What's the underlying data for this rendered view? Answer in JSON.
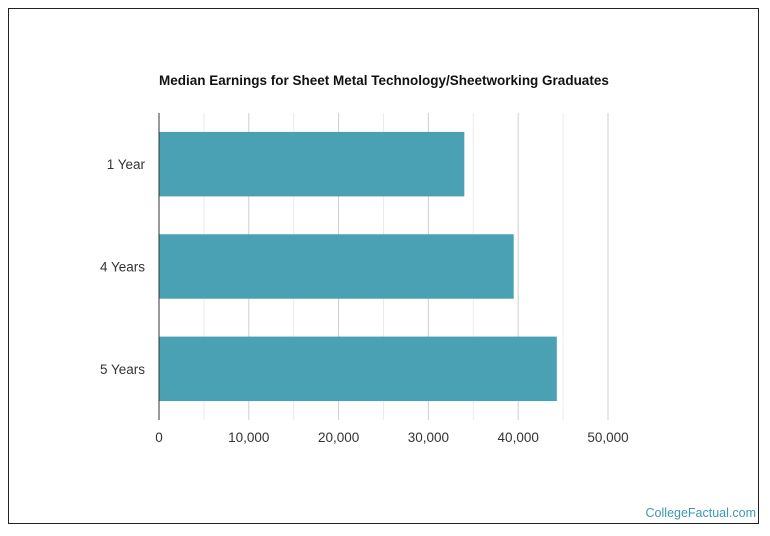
{
  "chart_data": {
    "type": "bar",
    "orientation": "horizontal",
    "title": "Median Earnings for Sheet Metal Technology/Sheetworking Graduates",
    "categories": [
      "1 Year",
      "4 Years",
      "5 Years"
    ],
    "values": [
      34000,
      39500,
      44300
    ],
    "xlabel": "",
    "ylabel": "",
    "xlim": [
      0,
      50000
    ],
    "x_ticks": [
      0,
      10000,
      20000,
      30000,
      40000,
      50000
    ],
    "x_tick_labels": [
      "0",
      "10,000",
      "20,000",
      "30,000",
      "40,000",
      "50,000"
    ],
    "grid": true,
    "legend": "none",
    "bar_color": "#4aa1b3"
  },
  "watermark": "CollegeFactual.com"
}
